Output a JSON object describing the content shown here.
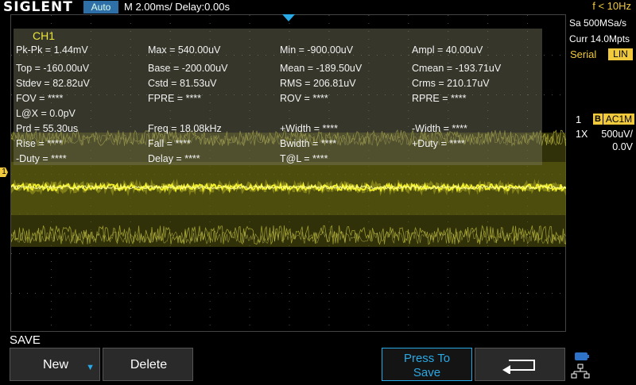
{
  "header": {
    "brand": "SIGLENT",
    "trigger_mode": "Auto",
    "timebase": "M 2.00ms/ Delay:0.00s"
  },
  "right_panel": {
    "freq": "f < 10Hz",
    "sample_rate": "Sa 500MSa/s",
    "memory_depth": "Curr 14.0Mpts",
    "decode_label": "Serial",
    "decode_badge": "LIN",
    "channel": {
      "number": "1",
      "bandwidth_flag": "B",
      "coupling": "AC1M",
      "probe": "1X",
      "volts_per_div": "500uV/",
      "offset": "0.0V"
    }
  },
  "channel_marker": "1",
  "measurements": {
    "channel": "CH1",
    "rows": [
      [
        "Pk-Pk = 1.44mV",
        "Max = 540.00uV",
        "Min = -900.00uV",
        "Ampl = 40.00uV"
      ],
      [
        "Top = -160.00uV",
        "Base = -200.00uV",
        "Mean = -189.50uV",
        "Cmean = -193.71uV"
      ],
      [
        "Stdev = 82.82uV",
        "Cstd = 81.53uV",
        "RMS = 206.81uV",
        "Crms = 210.17uV"
      ],
      [
        "FOV = ****",
        "FPRE = ****",
        "ROV = ****",
        "RPRE = ****"
      ],
      [
        "L@X = 0.0pV",
        "",
        "",
        ""
      ],
      [
        "Prd = 55.30us",
        "Freq = 18.08kHz",
        "+Width = ****",
        "-Width = ****"
      ],
      [
        "Rise = ****",
        "Fall = ****",
        "Bwidth = ****",
        "+Duty = ****"
      ],
      [
        "-Duty = ****",
        "Delay = ****",
        "T@L = ****",
        ""
      ]
    ]
  },
  "menu": {
    "title": "SAVE",
    "new_label": "New",
    "delete_label": "Delete",
    "press_line1": "Press To",
    "press_line2": "Save"
  },
  "colors": {
    "trace": "#f0ef2a",
    "accent_blue": "#29a9e6",
    "label_yellow": "#f0ca3c"
  }
}
